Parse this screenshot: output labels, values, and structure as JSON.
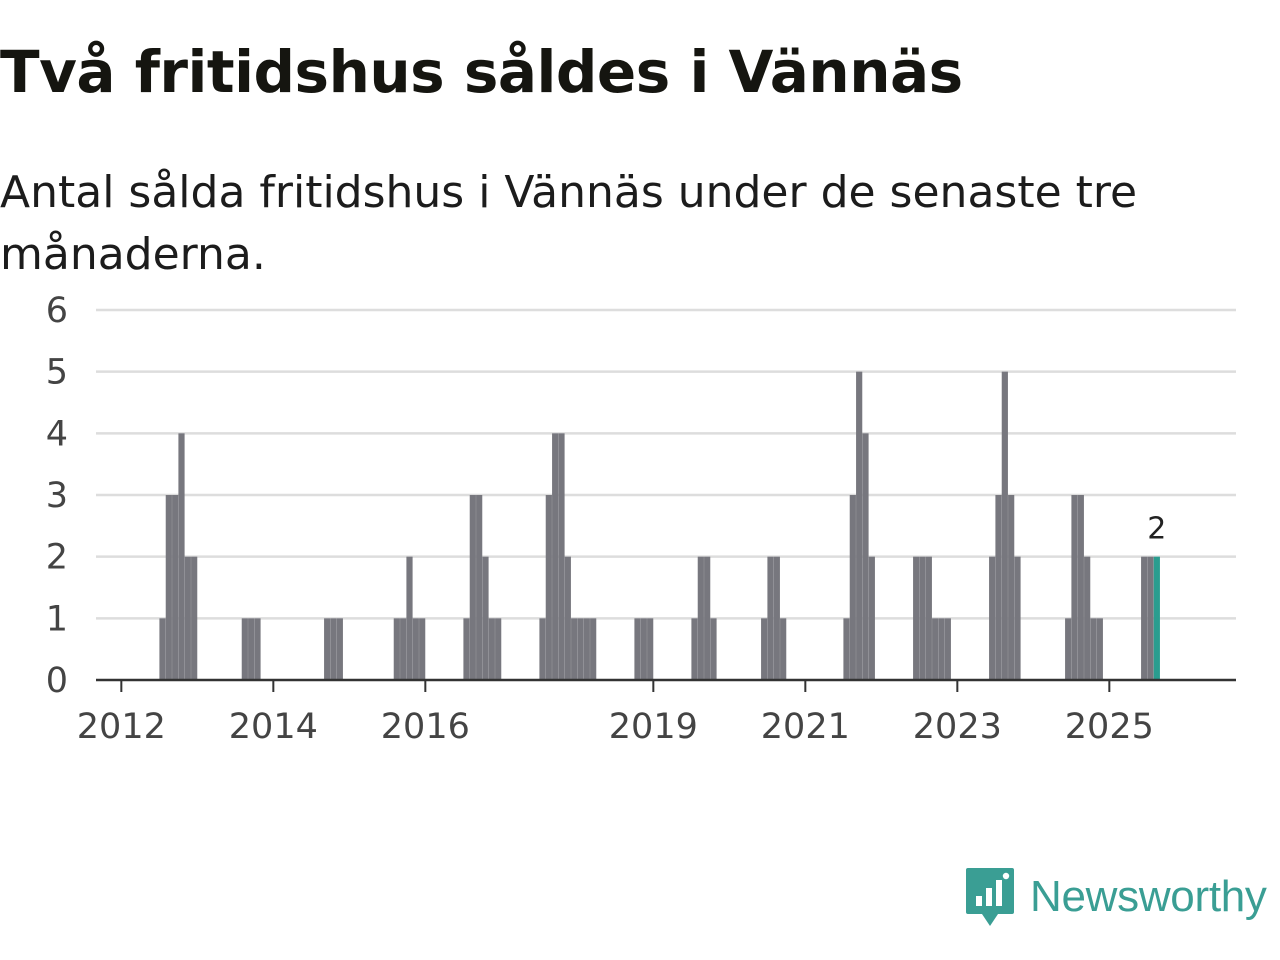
{
  "chart_data": {
    "type": "bar",
    "title": "Två fritidshus såldes i Vännäs",
    "subtitle": "Antal sålda fritidshus i Vännäs under de senaste tre månaderna.",
    "xlabel": "",
    "ylabel": "",
    "ylim": [
      0,
      6
    ],
    "yticks": [
      0,
      1,
      2,
      3,
      4,
      5,
      6
    ],
    "xticks": [
      {
        "year": 2012,
        "label": "2012"
      },
      {
        "year": 2014,
        "label": "2014"
      },
      {
        "year": 2016,
        "label": "2016"
      },
      {
        "year": 2019,
        "label": "2019"
      },
      {
        "year": 2021,
        "label": "2021"
      },
      {
        "year": 2023,
        "label": "2023"
      },
      {
        "year": 2025,
        "label": "2025"
      }
    ],
    "x_start": "2011-09",
    "x_end": "2026-09",
    "categories": [
      "2012-07",
      "2012-08",
      "2012-09",
      "2012-10",
      "2012-11",
      "2012-12",
      "2013-08",
      "2013-09",
      "2013-10",
      "2014-09",
      "2014-10",
      "2014-11",
      "2015-08",
      "2015-09",
      "2015-10",
      "2015-11",
      "2015-12",
      "2016-07",
      "2016-08",
      "2016-09",
      "2016-10",
      "2016-11",
      "2016-12",
      "2017-07",
      "2017-08",
      "2017-09",
      "2017-10",
      "2017-11",
      "2017-12",
      "2018-01",
      "2018-02",
      "2018-03",
      "2018-10",
      "2018-11",
      "2018-12",
      "2019-07",
      "2019-08",
      "2019-09",
      "2019-10",
      "2020-06",
      "2020-07",
      "2020-08",
      "2020-09",
      "2021-07",
      "2021-08",
      "2021-09",
      "2021-10",
      "2021-11",
      "2022-06",
      "2022-07",
      "2022-08",
      "2022-09",
      "2022-10",
      "2022-11",
      "2023-06",
      "2023-07",
      "2023-08",
      "2023-09",
      "2023-10",
      "2024-06",
      "2024-07",
      "2024-08",
      "2024-09",
      "2024-10",
      "2024-11",
      "2025-06",
      "2025-07",
      "2025-08"
    ],
    "values": [
      1,
      3,
      3,
      4,
      2,
      2,
      1,
      1,
      1,
      1,
      1,
      1,
      1,
      1,
      2,
      1,
      1,
      1,
      3,
      3,
      2,
      1,
      1,
      1,
      3,
      4,
      4,
      2,
      1,
      1,
      1,
      1,
      1,
      1,
      1,
      1,
      2,
      2,
      1,
      1,
      2,
      2,
      1,
      1,
      3,
      5,
      4,
      2,
      2,
      2,
      2,
      1,
      1,
      1,
      2,
      3,
      5,
      3,
      2,
      1,
      3,
      3,
      2,
      1,
      1,
      2,
      2,
      2
    ],
    "highlight": {
      "category": "2025-08",
      "value": 2,
      "label": "2"
    },
    "colors": {
      "bar": "#77777e",
      "highlight": "#2a9d8f",
      "grid": "#dddddd",
      "axis": "#333333"
    }
  },
  "brand": {
    "name": "Newsworthy",
    "icon": "newsworthy-logo-icon",
    "color": "#3a9e94"
  }
}
